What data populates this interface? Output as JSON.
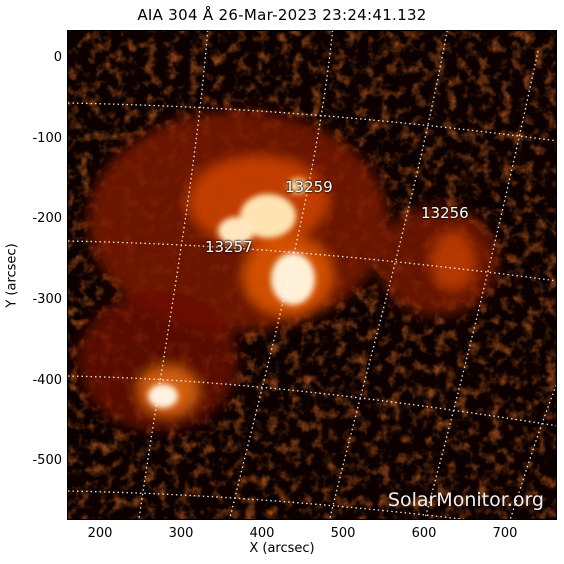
{
  "title": "AIA 304 Å 26-Mar-2023 23:24:41.132",
  "x_axis": {
    "label": "X (arcsec)",
    "ticks": [
      "200",
      "300",
      "400",
      "500",
      "600",
      "700"
    ]
  },
  "y_axis": {
    "label": "Y (arcsec)",
    "ticks": [
      "0",
      "-100",
      "-200",
      "-300",
      "-400",
      "-500"
    ]
  },
  "active_regions": [
    {
      "label": "13259"
    },
    {
      "label": "13257"
    },
    {
      "label": "13256"
    }
  ],
  "watermark": "SolarMonitor.org",
  "colors": {
    "background": "#000000",
    "emission_dark": "#4a0500",
    "emission_mid": "#c83a00",
    "emission_bright": "#ffd8a0",
    "grid": "#ffffff"
  }
}
